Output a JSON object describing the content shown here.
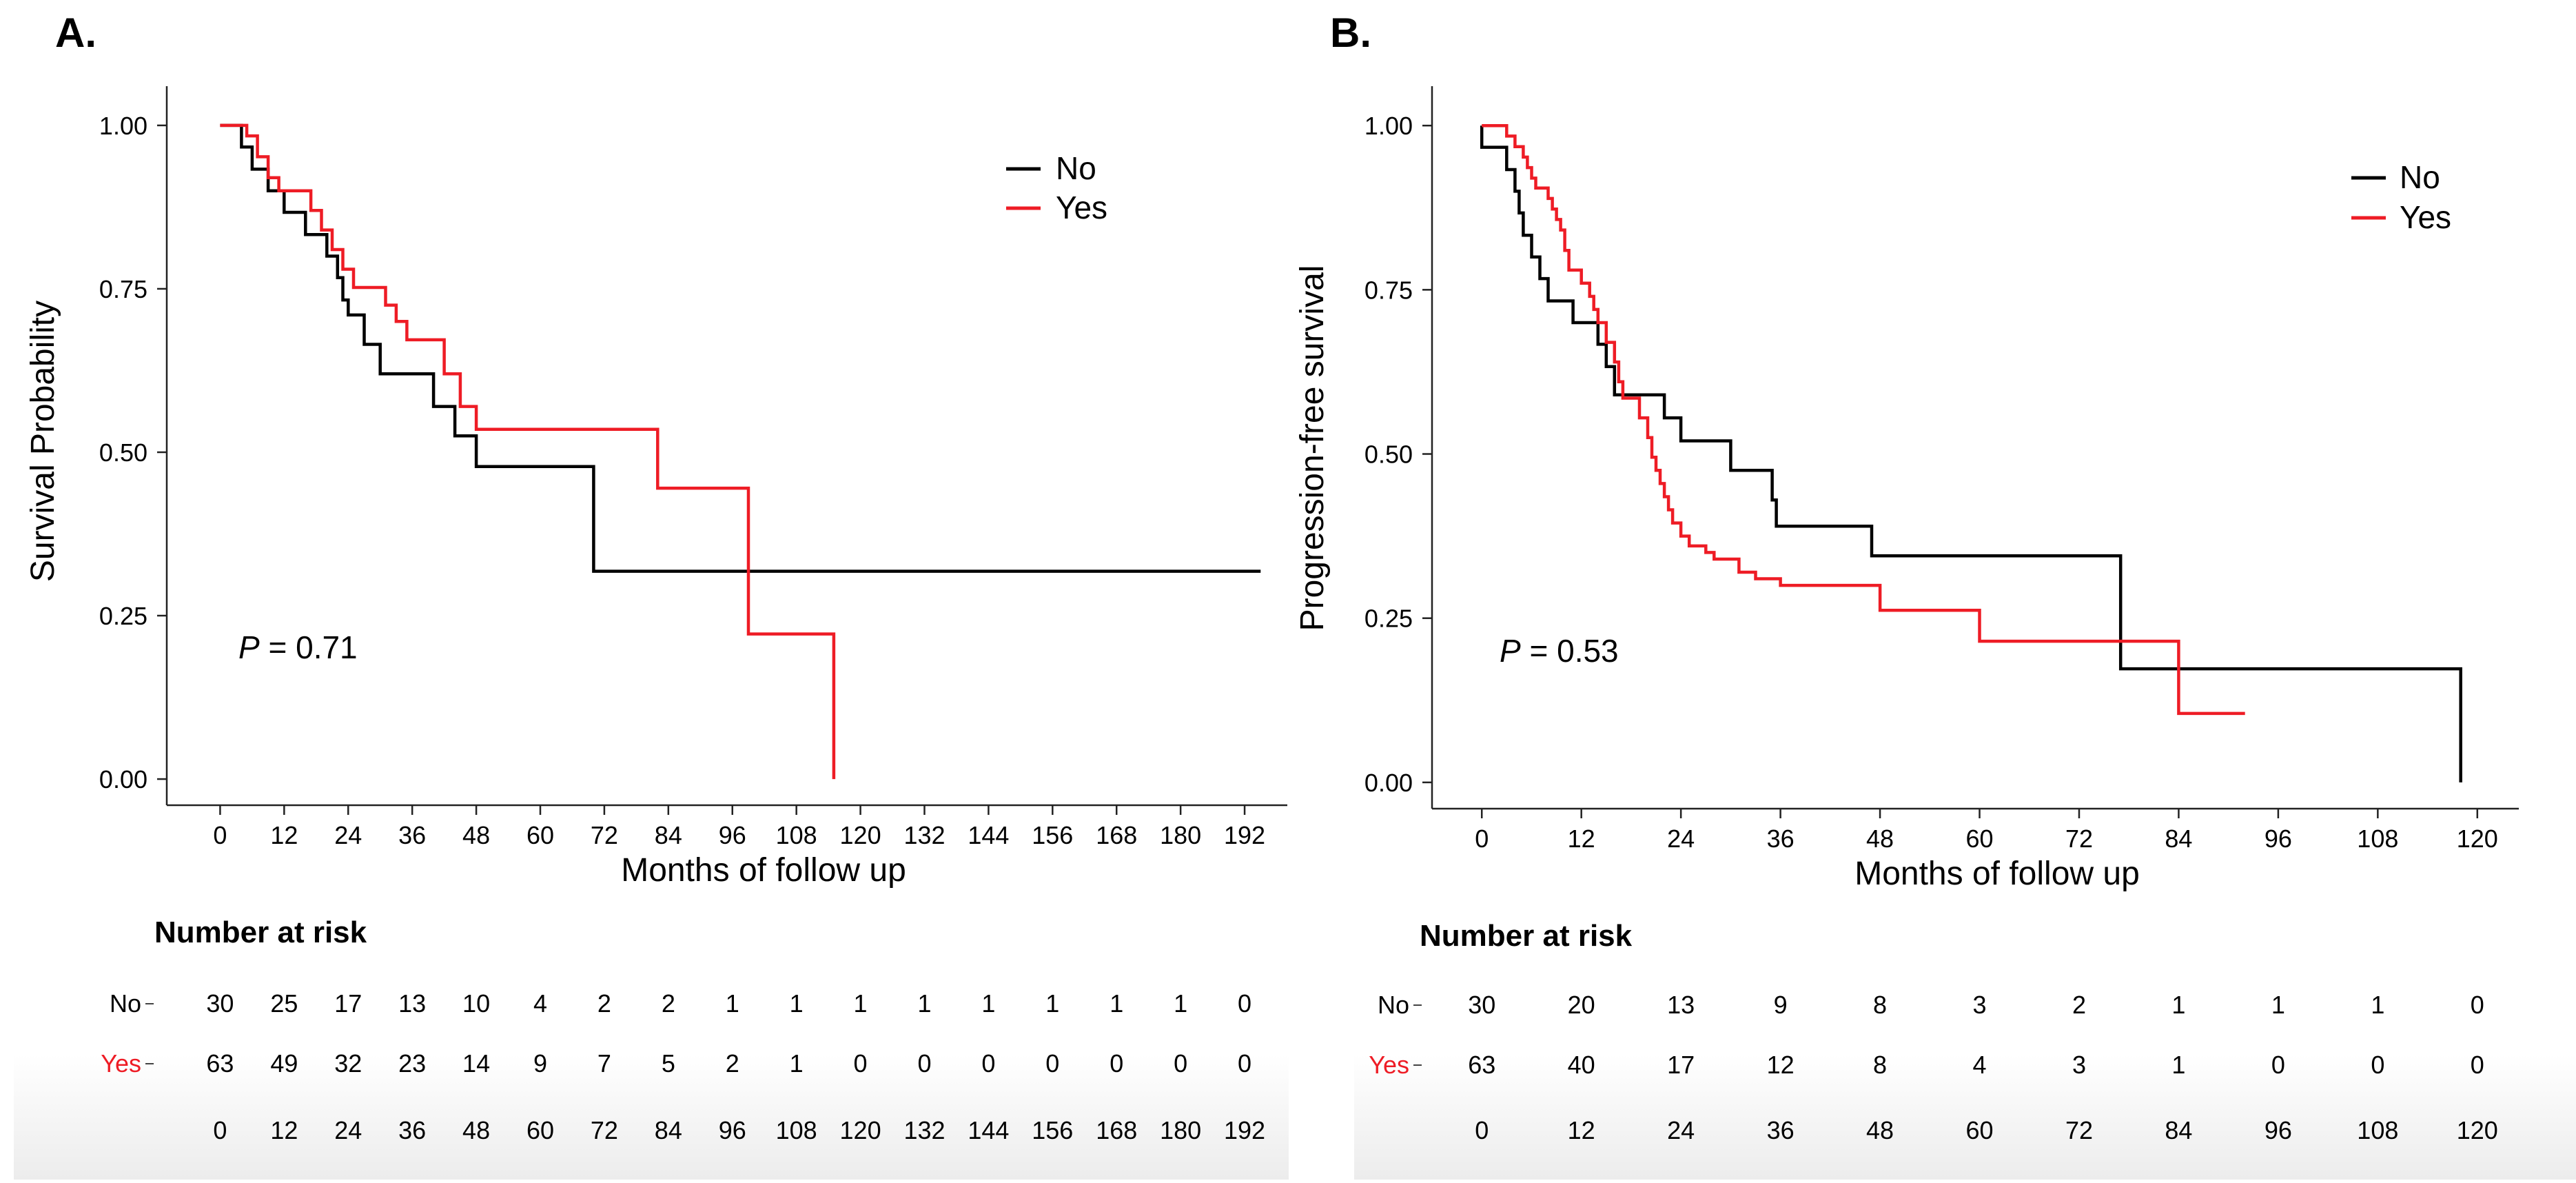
{
  "panels": [
    {
      "panel_label": "A.",
      "p_label": "P",
      "p_value": " = 0.71",
      "risk_title": "Number at risk",
      "risk_rows": [
        {
          "label": "No",
          "color": "#000000",
          "counts": [
            30,
            25,
            17,
            13,
            10,
            4,
            2,
            2,
            1,
            1,
            1,
            1,
            1,
            1,
            1,
            1,
            0
          ]
        },
        {
          "label": "Yes",
          "color": "#ee1c25",
          "counts": [
            63,
            49,
            32,
            23,
            14,
            9,
            7,
            5,
            2,
            1,
            0,
            0,
            0,
            0,
            0,
            0,
            0
          ]
        }
      ],
      "risk_times": [
        "0",
        "12",
        "24",
        "36",
        "48",
        "60",
        "72",
        "84",
        "96",
        "108",
        "120",
        "132",
        "144",
        "156",
        "168",
        "180",
        "192"
      ]
    },
    {
      "panel_label": "B.",
      "p_label": "P",
      "p_value": " = 0.53",
      "risk_title": "Number at risk",
      "risk_rows": [
        {
          "label": "No",
          "color": "#000000",
          "counts": [
            30,
            20,
            13,
            9,
            8,
            3,
            2,
            1,
            1,
            1,
            0
          ]
        },
        {
          "label": "Yes",
          "color": "#ee1c25",
          "counts": [
            63,
            40,
            17,
            12,
            8,
            4,
            3,
            1,
            0,
            0,
            0
          ]
        }
      ],
      "risk_times": [
        "0",
        "12",
        "24",
        "36",
        "48",
        "60",
        "72",
        "84",
        "96",
        "108",
        "120"
      ]
    }
  ],
  "chart_data": [
    {
      "type": "line",
      "subtype": "kaplan-meier-step",
      "title": "",
      "xlabel": "Months of follow up",
      "ylabel": "Survival Probability",
      "xlim": [
        -10,
        200
      ],
      "ylim": [
        -0.04,
        1.06
      ],
      "xticks": [
        0,
        12,
        24,
        36,
        48,
        60,
        72,
        84,
        96,
        108,
        120,
        132,
        144,
        156,
        168,
        180,
        192
      ],
      "yticks": [
        "0.00",
        "0.25",
        "0.50",
        "0.75",
        "1.00"
      ],
      "legend": [
        "No",
        "Yes"
      ],
      "legend_position": "top-right",
      "series": [
        {
          "name": "No",
          "color": "#000000",
          "points": [
            [
              0,
              1.0
            ],
            [
              4,
              1.0
            ],
            [
              4,
              0.967
            ],
            [
              6,
              0.967
            ],
            [
              6,
              0.933
            ],
            [
              9,
              0.933
            ],
            [
              9,
              0.9
            ],
            [
              12,
              0.9
            ],
            [
              12,
              0.867
            ],
            [
              16,
              0.867
            ],
            [
              16,
              0.833
            ],
            [
              20,
              0.833
            ],
            [
              20,
              0.8
            ],
            [
              22,
              0.8
            ],
            [
              22,
              0.767
            ],
            [
              23,
              0.767
            ],
            [
              23,
              0.733
            ],
            [
              24,
              0.733
            ],
            [
              24,
              0.71
            ],
            [
              27,
              0.71
            ],
            [
              27,
              0.665
            ],
            [
              30,
              0.665
            ],
            [
              30,
              0.62
            ],
            [
              40,
              0.62
            ],
            [
              40,
              0.57
            ],
            [
              44,
              0.57
            ],
            [
              44,
              0.525
            ],
            [
              48,
              0.525
            ],
            [
              48,
              0.478
            ],
            [
              70,
              0.478
            ],
            [
              70,
              0.318
            ],
            [
              195,
              0.318
            ]
          ]
        },
        {
          "name": "Yes",
          "color": "#ee1c25",
          "points": [
            [
              0,
              1.0
            ],
            [
              5,
              1.0
            ],
            [
              5,
              0.984
            ],
            [
              7,
              0.984
            ],
            [
              7,
              0.952
            ],
            [
              9,
              0.952
            ],
            [
              9,
              0.92
            ],
            [
              11,
              0.92
            ],
            [
              11,
              0.9
            ],
            [
              17,
              0.9
            ],
            [
              17,
              0.87
            ],
            [
              19,
              0.87
            ],
            [
              19,
              0.84
            ],
            [
              21,
              0.84
            ],
            [
              21,
              0.81
            ],
            [
              23,
              0.81
            ],
            [
              23,
              0.78
            ],
            [
              25,
              0.78
            ],
            [
              25,
              0.752
            ],
            [
              31,
              0.752
            ],
            [
              31,
              0.725
            ],
            [
              33,
              0.725
            ],
            [
              33,
              0.7
            ],
            [
              35,
              0.7
            ],
            [
              35,
              0.672
            ],
            [
              42,
              0.672
            ],
            [
              42,
              0.62
            ],
            [
              45,
              0.62
            ],
            [
              45,
              0.57
            ],
            [
              48,
              0.57
            ],
            [
              48,
              0.535
            ],
            [
              82,
              0.535
            ],
            [
              82,
              0.445
            ],
            [
              99,
              0.445
            ],
            [
              99,
              0.222
            ],
            [
              115,
              0.222
            ],
            [
              115,
              0.0
            ]
          ]
        }
      ]
    },
    {
      "type": "line",
      "subtype": "kaplan-meier-step",
      "title": "",
      "xlabel": "Months of follow up",
      "ylabel": "Progression-free survival",
      "xlim": [
        -6,
        125
      ],
      "ylim": [
        -0.04,
        1.06
      ],
      "xticks": [
        0,
        12,
        24,
        36,
        48,
        60,
        72,
        84,
        96,
        108,
        120
      ],
      "yticks": [
        "0.00",
        "0.25",
        "0.50",
        "0.75",
        "1.00"
      ],
      "legend": [
        "No",
        "Yes"
      ],
      "legend_position": "top-right",
      "series": [
        {
          "name": "No",
          "color": "#000000",
          "points": [
            [
              0,
              1.0
            ],
            [
              0,
              0.967
            ],
            [
              3,
              0.967
            ],
            [
              3,
              0.933
            ],
            [
              4,
              0.933
            ],
            [
              4,
              0.9
            ],
            [
              4.5,
              0.9
            ],
            [
              4.5,
              0.867
            ],
            [
              5,
              0.867
            ],
            [
              5,
              0.833
            ],
            [
              6,
              0.833
            ],
            [
              6,
              0.8
            ],
            [
              7,
              0.8
            ],
            [
              7,
              0.767
            ],
            [
              8,
              0.767
            ],
            [
              8,
              0.733
            ],
            [
              11,
              0.733
            ],
            [
              11,
              0.7
            ],
            [
              14,
              0.7
            ],
            [
              14,
              0.667
            ],
            [
              15,
              0.667
            ],
            [
              15,
              0.633
            ],
            [
              16,
              0.633
            ],
            [
              16,
              0.59
            ],
            [
              22,
              0.59
            ],
            [
              22,
              0.555
            ],
            [
              24,
              0.555
            ],
            [
              24,
              0.52
            ],
            [
              30,
              0.52
            ],
            [
              30,
              0.475
            ],
            [
              35,
              0.475
            ],
            [
              35,
              0.43
            ],
            [
              35.5,
              0.43
            ],
            [
              35.5,
              0.39
            ],
            [
              47,
              0.39
            ],
            [
              47,
              0.345
            ],
            [
              77,
              0.345
            ],
            [
              77,
              0.173
            ],
            [
              118,
              0.173
            ],
            [
              118,
              0.0
            ]
          ]
        },
        {
          "name": "Yes",
          "color": "#ee1c25",
          "points": [
            [
              0,
              1.0
            ],
            [
              3,
              1.0
            ],
            [
              3,
              0.984
            ],
            [
              4,
              0.984
            ],
            [
              4,
              0.968
            ],
            [
              5,
              0.968
            ],
            [
              5,
              0.952
            ],
            [
              5.5,
              0.952
            ],
            [
              5.5,
              0.936
            ],
            [
              6,
              0.936
            ],
            [
              6,
              0.92
            ],
            [
              6.5,
              0.92
            ],
            [
              6.5,
              0.905
            ],
            [
              8,
              0.905
            ],
            [
              8,
              0.889
            ],
            [
              8.5,
              0.889
            ],
            [
              8.5,
              0.873
            ],
            [
              9,
              0.873
            ],
            [
              9,
              0.857
            ],
            [
              9.5,
              0.857
            ],
            [
              9.5,
              0.841
            ],
            [
              10,
              0.841
            ],
            [
              10,
              0.81
            ],
            [
              10.5,
              0.81
            ],
            [
              10.5,
              0.78
            ],
            [
              12,
              0.78
            ],
            [
              12,
              0.76
            ],
            [
              13,
              0.76
            ],
            [
              13,
              0.74
            ],
            [
              13.5,
              0.74
            ],
            [
              13.5,
              0.72
            ],
            [
              14,
              0.72
            ],
            [
              14,
              0.7
            ],
            [
              15,
              0.7
            ],
            [
              15,
              0.67
            ],
            [
              16,
              0.67
            ],
            [
              16,
              0.64
            ],
            [
              16.5,
              0.64
            ],
            [
              16.5,
              0.61
            ],
            [
              17,
              0.61
            ],
            [
              17,
              0.585
            ],
            [
              19,
              0.585
            ],
            [
              19,
              0.555
            ],
            [
              20,
              0.555
            ],
            [
              20,
              0.525
            ],
            [
              20.5,
              0.525
            ],
            [
              20.5,
              0.495
            ],
            [
              21,
              0.495
            ],
            [
              21,
              0.475
            ],
            [
              21.5,
              0.475
            ],
            [
              21.5,
              0.455
            ],
            [
              22,
              0.455
            ],
            [
              22,
              0.435
            ],
            [
              22.5,
              0.435
            ],
            [
              22.5,
              0.415
            ],
            [
              23,
              0.415
            ],
            [
              23,
              0.395
            ],
            [
              24,
              0.395
            ],
            [
              24,
              0.375
            ],
            [
              25,
              0.375
            ],
            [
              25,
              0.36
            ],
            [
              27,
              0.36
            ],
            [
              27,
              0.35
            ],
            [
              28,
              0.35
            ],
            [
              28,
              0.34
            ],
            [
              31,
              0.34
            ],
            [
              31,
              0.32
            ],
            [
              33,
              0.32
            ],
            [
              33,
              0.31
            ],
            [
              36,
              0.31
            ],
            [
              36,
              0.3
            ],
            [
              48,
              0.3
            ],
            [
              48,
              0.262
            ],
            [
              60,
              0.262
            ],
            [
              60,
              0.215
            ],
            [
              84,
              0.215
            ],
            [
              84,
              0.105
            ],
            [
              92,
              0.105
            ]
          ]
        }
      ]
    }
  ]
}
